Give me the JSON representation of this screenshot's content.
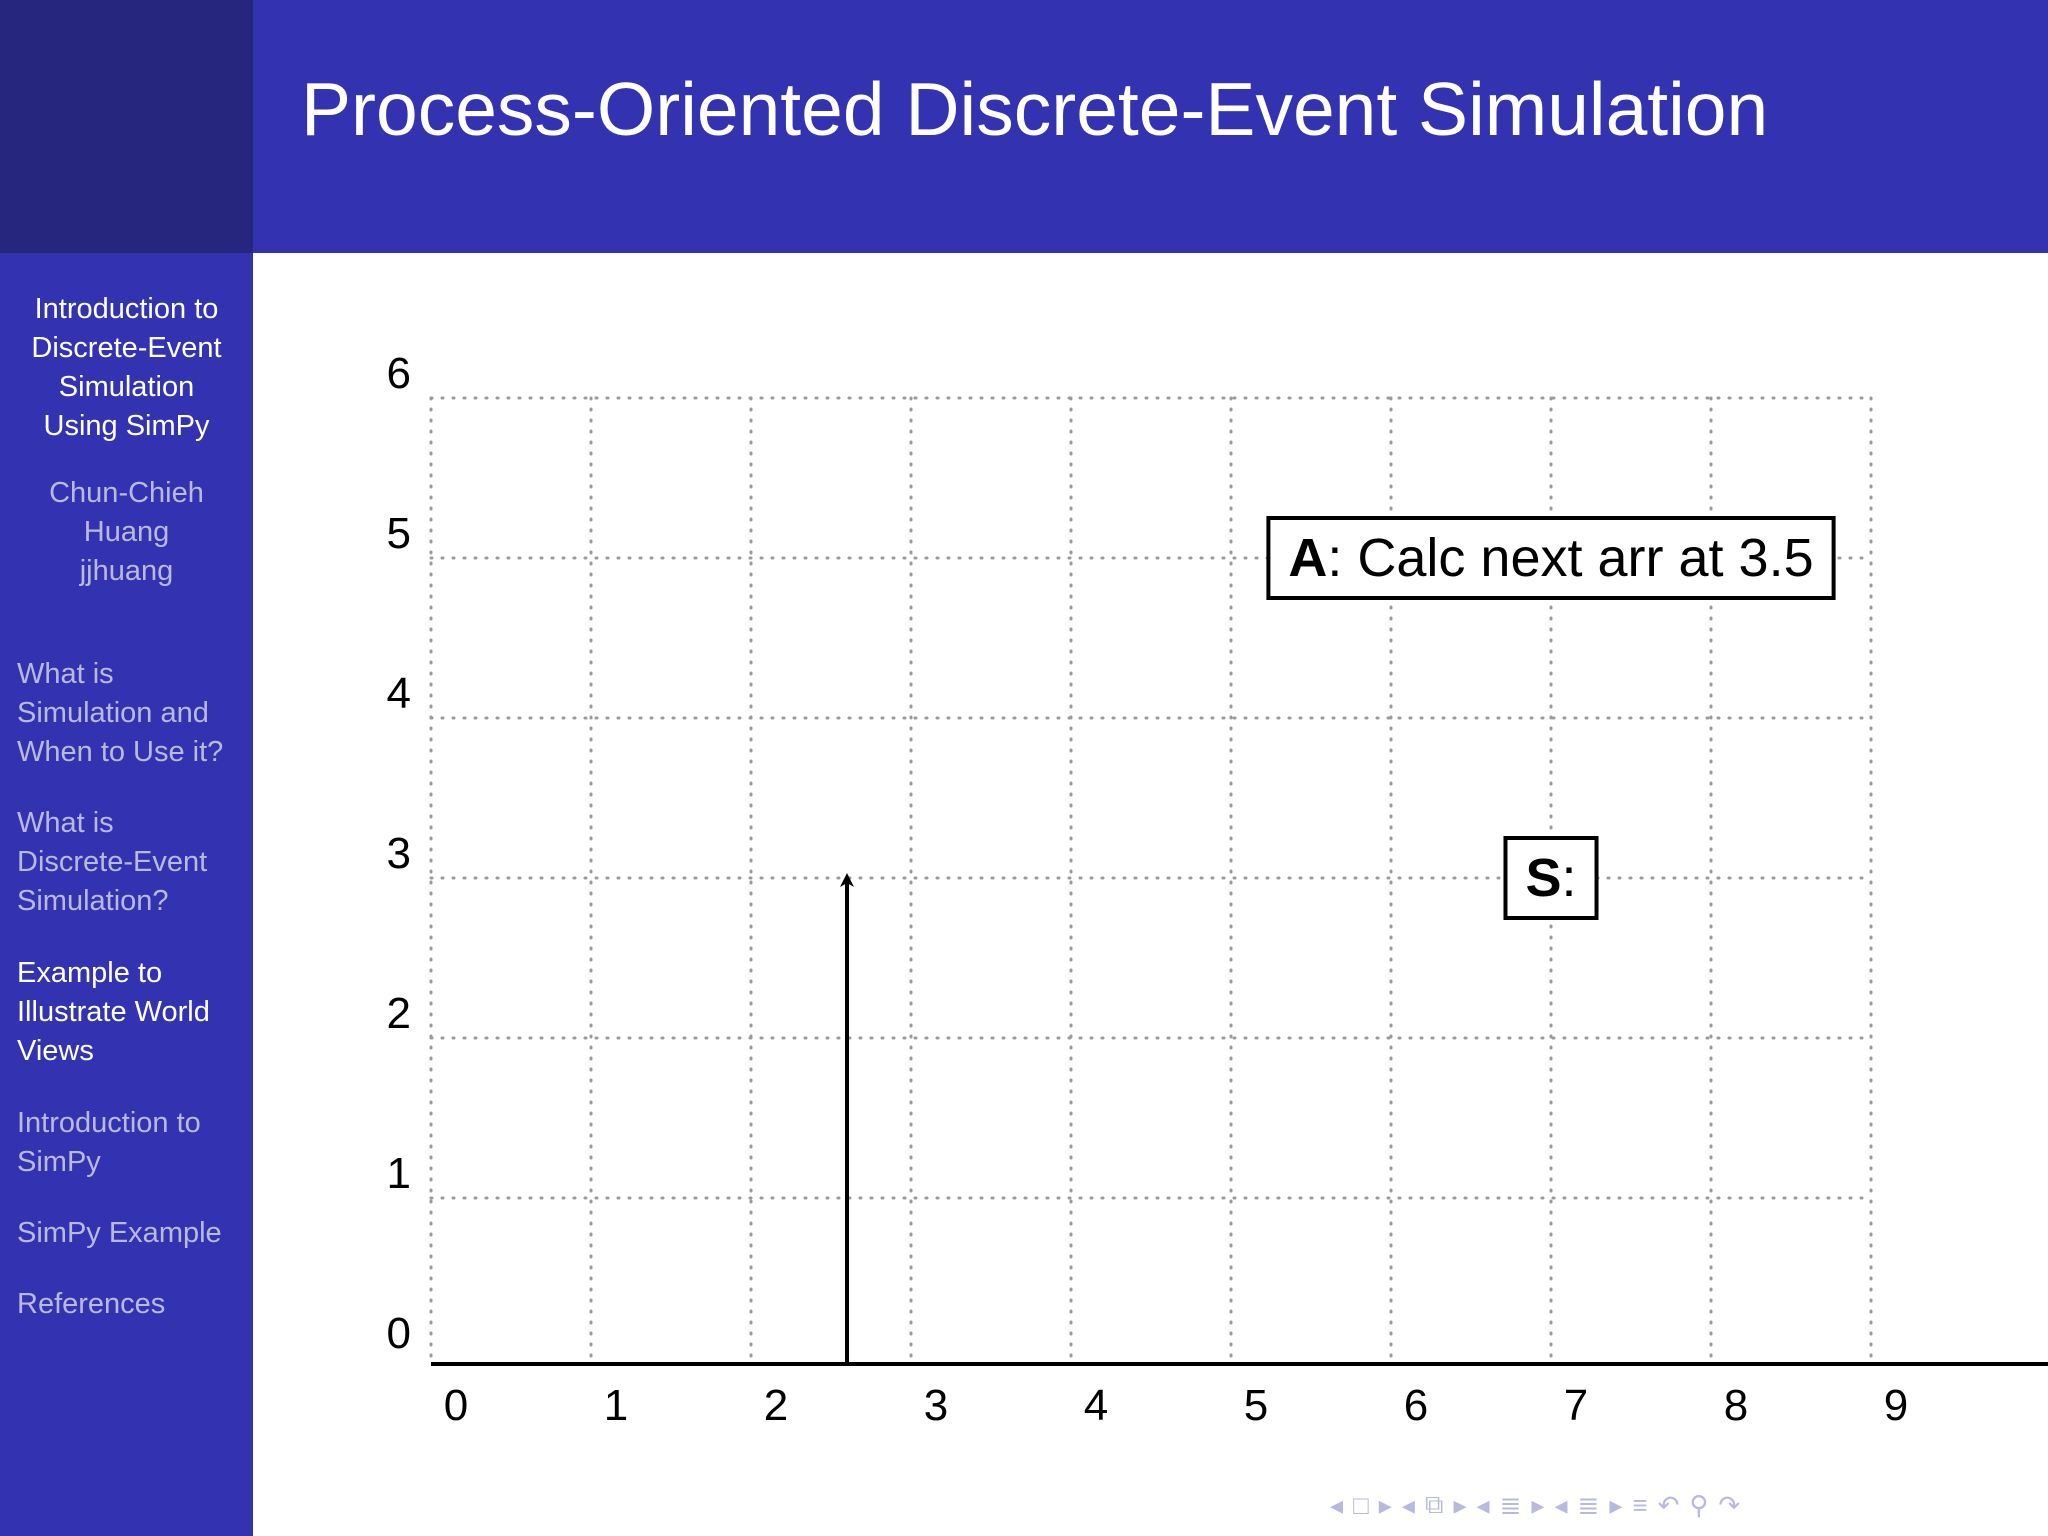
{
  "header": {
    "title": "Process-Oriented Discrete-Event Simulation"
  },
  "sidebar": {
    "presentation_title": [
      "Introduction to",
      "Discrete-Event",
      "Simulation",
      "Using SimPy"
    ],
    "author": [
      "Chun-Chieh",
      "Huang",
      "jjhuang"
    ],
    "sections": [
      {
        "lines": [
          "What is",
          "Simulation and",
          "When to Use it?"
        ],
        "active": false
      },
      {
        "lines": [
          "What is",
          "Discrete-Event",
          "Simulation?"
        ],
        "active": false
      },
      {
        "lines": [
          "Example to",
          "Illustrate World",
          "Views"
        ],
        "active": true
      },
      {
        "lines": [
          "Introduction to",
          "SimPy"
        ],
        "active": false
      },
      {
        "lines": [
          "SimPy Example"
        ],
        "active": false
      },
      {
        "lines": [
          "References"
        ],
        "active": false
      }
    ]
  },
  "colors": {
    "header_bg": "#3333b2",
    "logo_bg": "#26267f",
    "sidebar_bg": "#3333b2",
    "active_text": "#ffffff",
    "inactive_text": "#b9b9e0"
  },
  "chart_data": {
    "type": "diagram",
    "x_ticks": [
      "0",
      "1",
      "2",
      "3",
      "4",
      "5",
      "6",
      "7",
      "8",
      "9"
    ],
    "y_ticks": [
      "0",
      "1",
      "2",
      "3",
      "4",
      "5",
      "6"
    ],
    "xlim": [
      0,
      9.5
    ],
    "ylim": [
      0,
      6
    ],
    "grid": true,
    "arrows": [
      {
        "x": 2.6,
        "y_from": 0,
        "y_to": 3
      }
    ],
    "boxes": [
      {
        "bold": "A",
        "text": ": Calc next arr at 3.5",
        "x_center": 7.0,
        "y": 5
      },
      {
        "bold": "S",
        "text": ":",
        "x_center": 7.0,
        "y": 3
      }
    ]
  },
  "nav": {
    "icons": [
      "arrow-left",
      "frame",
      "arrow-right",
      "arrow-left",
      "subsection",
      "arrow-right",
      "arrow-left",
      "section",
      "arrow-right",
      "arrow-left",
      "section-list",
      "arrow-right",
      "outline",
      "undo",
      "search",
      "redo"
    ],
    "glyphs": [
      "◂",
      "□",
      "▸",
      "◂",
      "⧉",
      "▸",
      "◂",
      "≣",
      "▸",
      "◂",
      "≣",
      "▸",
      "≡",
      "↶",
      "⚲",
      "↷"
    ]
  }
}
